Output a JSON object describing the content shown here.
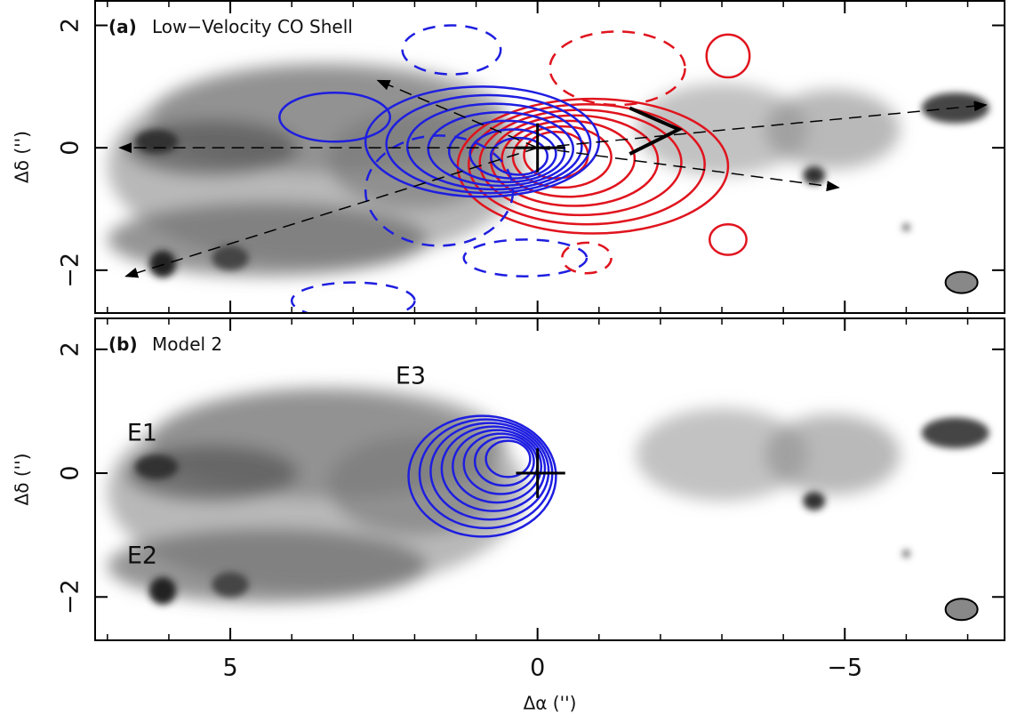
{
  "chart_data": [
    {
      "type": "image",
      "panel_label": "(a)",
      "title": "Low−Velocity CO Shell",
      "xlim": [
        7.2,
        -7.6
      ],
      "xticks": [
        5,
        0,
        {
          "value": -5,
          "label": "−5"
        }
      ],
      "ylim": [
        -2.7,
        2.4
      ],
      "yticks": [
        {
          "value": -2,
          "label": "−2"
        },
        0,
        2
      ],
      "y_label": "Δδ ('')"
    },
    {
      "type": "image",
      "panel_label": "(b)",
      "title": "Model 2",
      "annotations": [
        "E1",
        "E2",
        "E3"
      ],
      "xlim": [
        7.2,
        -7.6
      ],
      "xticks": [
        5,
        0,
        {
          "value": -5,
          "label": "−5"
        }
      ],
      "ylim": [
        -2.7,
        2.5
      ],
      "yticks": [
        {
          "value": -2,
          "label": "−2"
        },
        0,
        2
      ],
      "x_label": "Δα ('')",
      "y_label": "Δδ ('')"
    }
  ]
}
